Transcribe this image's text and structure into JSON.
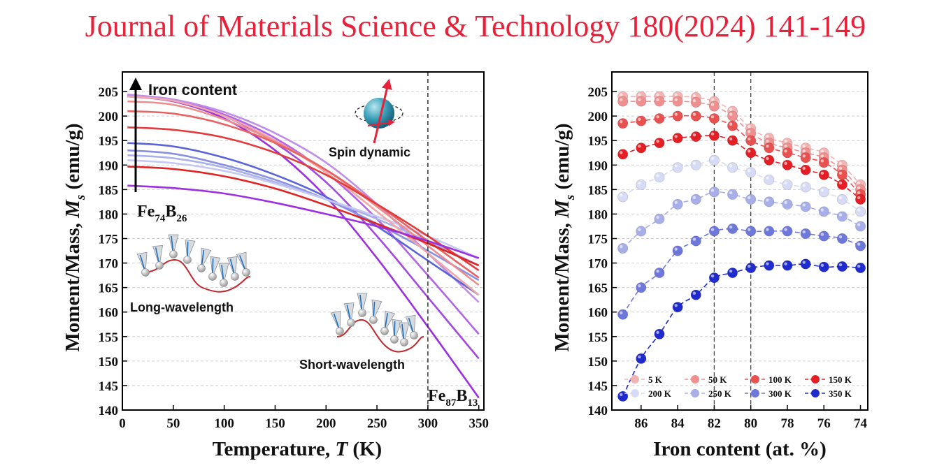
{
  "header": {
    "citation": "Journal of Materials Science & Technology 180(2024) 141-149"
  },
  "colors": {
    "header": "#e8213a",
    "series": [
      "#f4b3b3",
      "#ef8f8f",
      "#e8514f",
      "#e31e24",
      "#d7dbf5",
      "#a7aee8",
      "#6e77da",
      "#1f2bcc"
    ],
    "fe_series": [
      "#9b30e0",
      "#a448e2",
      "#b263e6",
      "#c08eea",
      "#5a64d8",
      "#8990e2",
      "#a9b0ec",
      "#c4c8f2",
      "#f0a8a8",
      "#ee8d8d",
      "#e86262",
      "#e23b3b",
      "#df2424"
    ]
  },
  "chart_data": [
    {
      "type": "line",
      "xlabel": "Temperature,",
      "xlabel_italic": "T",
      "xlabel_unit": "(K)",
      "ylabel": "Moment/Mass,",
      "ylabel_italic": "M",
      "ylabel_sub": "s",
      "ylabel_unit": "(emu/g)",
      "xlim": [
        0,
        355
      ],
      "ylim": [
        140,
        209
      ],
      "xticks": [
        0,
        50,
        100,
        150,
        200,
        250,
        300,
        350
      ],
      "yticks": [
        140,
        145,
        150,
        155,
        160,
        165,
        170,
        175,
        180,
        185,
        190,
        195,
        200,
        205
      ],
      "grid": true,
      "reference_line_x": 300,
      "x": [
        5,
        50,
        100,
        150,
        200,
        250,
        300,
        350
      ],
      "series": [
        {
          "values": [
            204.0,
            203.0,
            199.5,
            193.0,
            183.5,
            171.0,
            157.0,
            142.5
          ]
        },
        {
          "values": [
            204.2,
            203.2,
            200.0,
            194.5,
            186.5,
            175.5,
            163.0,
            150.5
          ]
        },
        {
          "values": [
            204.3,
            203.3,
            200.3,
            195.5,
            188.5,
            179.0,
            167.5,
            155.5
          ]
        },
        {
          "values": [
            204.4,
            203.4,
            200.8,
            196.5,
            190.5,
            182.0,
            172.0,
            162.0
          ]
        },
        {
          "values": [
            194.5,
            193.8,
            191.5,
            188.0,
            183.5,
            177.5,
            170.5,
            163.5
          ]
        },
        {
          "values": [
            193.0,
            192.3,
            190.0,
            187.0,
            183.0,
            178.0,
            172.5,
            166.5
          ]
        },
        {
          "values": [
            192.0,
            191.4,
            189.5,
            186.5,
            183.0,
            179.0,
            174.5,
            169.5
          ]
        },
        {
          "values": [
            191.0,
            190.4,
            188.8,
            186.2,
            183.0,
            179.5,
            175.5,
            171.0
          ]
        },
        {
          "values": [
            204.0,
            203.1,
            200.0,
            195.0,
            188.5,
            180.5,
            172.0,
            163.5
          ]
        },
        {
          "values": [
            203.0,
            202.3,
            199.3,
            194.8,
            189.0,
            181.5,
            173.5,
            165.5
          ]
        },
        {
          "values": [
            201.0,
            200.5,
            198.3,
            194.5,
            189.0,
            182.0,
            174.5,
            167.0
          ]
        },
        {
          "values": [
            197.7,
            197.2,
            195.6,
            192.5,
            188.0,
            182.0,
            175.5,
            168.5
          ]
        },
        {
          "values": [
            189.7,
            189.2,
            187.7,
            185.2,
            181.8,
            178.0,
            174.0,
            169.5
          ]
        },
        {
          "values": [
            185.8,
            185.3,
            184.2,
            182.3,
            180.0,
            177.5,
            174.5,
            171.0
          ]
        }
      ],
      "annotations": {
        "iron_content": "Iron content",
        "fe74_base": "Fe",
        "fe74_sub1": "74",
        "fe74_mid": "B",
        "fe74_sub2": "26",
        "fe87_base": "Fe",
        "fe87_sub1": "87",
        "fe87_mid": "B",
        "fe87_sub2": "13",
        "long_wavelength": "Long-wavelength",
        "short_wavelength": "Short-wavelength",
        "spin_dynamic": "Spin dynamic"
      }
    },
    {
      "type": "scatter",
      "xlabel": "Iron content (at. %)",
      "ylabel": "Moment/Mass,",
      "ylabel_italic": "M",
      "ylabel_sub": "s",
      "ylabel_unit": "(emu/g)",
      "xlim": [
        87.6,
        73.6
      ],
      "ylim": [
        140,
        209
      ],
      "xticks": [
        86,
        84,
        82,
        80,
        78,
        76,
        74
      ],
      "yticks": [
        140,
        145,
        150,
        155,
        160,
        165,
        170,
        175,
        180,
        185,
        190,
        195,
        200,
        205
      ],
      "grid": true,
      "reference_lines_x": [
        82,
        80
      ],
      "x": [
        87,
        86,
        85,
        84,
        83,
        82,
        81,
        80,
        79,
        78,
        77,
        76,
        75,
        74
      ],
      "series": [
        {
          "name": "5 K",
          "values": [
            204.0,
            204.0,
            204.0,
            204.0,
            203.8,
            203.0,
            201.0,
            197.5,
            195.5,
            194.5,
            193.5,
            192.5,
            190.0,
            186.0
          ]
        },
        {
          "name": "50 K",
          "values": [
            203.0,
            203.0,
            203.0,
            203.0,
            202.8,
            202.0,
            200.0,
            196.5,
            194.5,
            193.5,
            192.5,
            191.5,
            189.0,
            185.0
          ]
        },
        {
          "name": "100 K",
          "values": [
            198.5,
            199.0,
            199.5,
            200.0,
            200.0,
            199.5,
            198.0,
            195.0,
            193.5,
            192.5,
            191.5,
            190.5,
            188.0,
            184.0
          ]
        },
        {
          "name": "150 K",
          "values": [
            192.2,
            193.5,
            194.5,
            195.5,
            195.8,
            196.0,
            195.0,
            192.5,
            191.0,
            190.0,
            189.0,
            188.0,
            186.0,
            183.0
          ]
        },
        {
          "name": "200 K",
          "values": [
            183.5,
            186.0,
            187.5,
            189.5,
            190.0,
            191.0,
            189.5,
            188.5,
            187.0,
            186.0,
            185.5,
            184.5,
            183.0,
            180.5
          ]
        },
        {
          "name": "250 K",
          "values": [
            173.0,
            176.5,
            179.0,
            182.0,
            183.0,
            184.5,
            184.0,
            183.0,
            182.5,
            182.0,
            181.5,
            180.5,
            179.5,
            177.5
          ]
        },
        {
          "name": "300 K",
          "values": [
            159.5,
            165.0,
            168.0,
            172.5,
            174.5,
            176.5,
            177.0,
            176.5,
            176.5,
            176.5,
            176.0,
            175.5,
            175.0,
            173.5
          ]
        },
        {
          "name": "350 K",
          "values": [
            142.8,
            150.5,
            155.5,
            161.0,
            163.5,
            167.0,
            168.0,
            169.0,
            169.5,
            169.5,
            169.8,
            169.2,
            169.3,
            169.0
          ]
        }
      ]
    }
  ]
}
